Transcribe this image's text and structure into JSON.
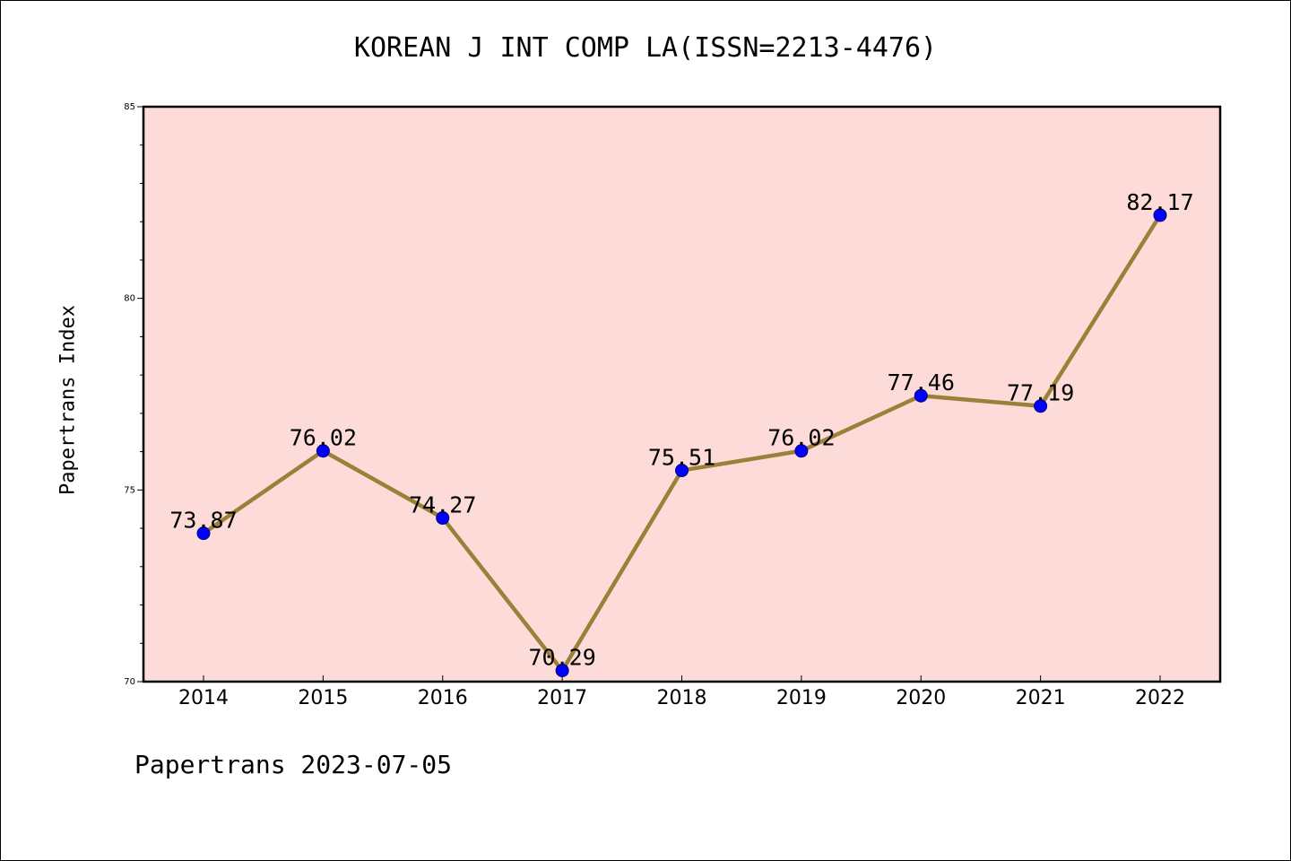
{
  "chart_data": {
    "type": "line",
    "title": "KOREAN J INT COMP LA(ISSN=2213-4476)",
    "xlabel": "",
    "ylabel": "Papertrans Index",
    "x": [
      "2014",
      "2015",
      "2016",
      "2017",
      "2018",
      "2019",
      "2020",
      "2021",
      "2022"
    ],
    "series": [
      {
        "values": [
          73.87,
          76.02,
          74.27,
          70.29,
          75.51,
          76.02,
          77.46,
          77.19,
          82.17
        ],
        "labels": [
          "73.87",
          "76.02",
          "74.27",
          "70.29",
          "75.51",
          "76.02",
          "77.46",
          "77.19",
          "82.17"
        ]
      }
    ],
    "ylim": [
      70,
      85
    ],
    "yticks": [
      "70",
      "75",
      "80",
      "85"
    ],
    "grid": false,
    "legend": "none"
  },
  "footer": "Papertrans 2023-07-05",
  "colors": {
    "plot_background": "#fddbd8",
    "line": "#9a8038",
    "marker": "#0000ff",
    "axis": "#000000"
  }
}
